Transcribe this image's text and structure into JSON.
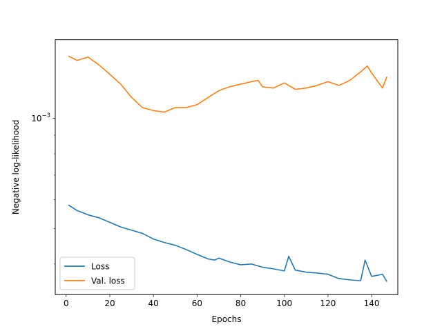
{
  "chart_data": {
    "type": "line",
    "xlabel": "Epochs",
    "ylabel": "Negative log-likelihood",
    "yscale": "log",
    "xlim": [
      -5,
      152
    ],
    "ylim": [
      0.00033,
      0.00164
    ],
    "xticks": [
      0,
      20,
      40,
      60,
      80,
      100,
      120,
      140
    ],
    "ytick_labels": [
      {
        "base": "10",
        "exp": "−3",
        "value": 0.001
      }
    ],
    "grid": false,
    "legend": "lower-left",
    "series": [
      {
        "name": "Loss",
        "color": "#1f77b4",
        "x": [
          1,
          5,
          10,
          15,
          20,
          25,
          30,
          35,
          40,
          45,
          50,
          55,
          60,
          65,
          68,
          70,
          75,
          80,
          85,
          90,
          95,
          100,
          102,
          105,
          110,
          115,
          120,
          125,
          130,
          135,
          137,
          140,
          145,
          147
        ],
        "y": [
          0.00058,
          0.00056,
          0.000545,
          0.000535,
          0.00052,
          0.000505,
          0.000495,
          0.000485,
          0.000468,
          0.000458,
          0.00045,
          0.000438,
          0.000425,
          0.000413,
          0.00041,
          0.000415,
          0.000405,
          0.000398,
          0.0004,
          0.000392,
          0.000388,
          0.000383,
          0.00042,
          0.000385,
          0.00038,
          0.000378,
          0.000375,
          0.000365,
          0.000362,
          0.00036,
          0.00041,
          0.00037,
          0.000375,
          0.000358
        ]
      },
      {
        "name": "Val. loss",
        "color": "#ff7f0e",
        "x": [
          1,
          5,
          10,
          15,
          20,
          25,
          30,
          35,
          40,
          45,
          50,
          55,
          60,
          65,
          68,
          70,
          75,
          80,
          85,
          88,
          90,
          95,
          100,
          105,
          110,
          115,
          120,
          125,
          130,
          135,
          138,
          140,
          145,
          147
        ],
        "y": [
          0.00148,
          0.00144,
          0.00147,
          0.0014,
          0.00132,
          0.00124,
          0.00114,
          0.00107,
          0.00105,
          0.00104,
          0.00107,
          0.00107,
          0.00109,
          0.00114,
          0.00117,
          0.00119,
          0.00122,
          0.00124,
          0.00126,
          0.00127,
          0.00122,
          0.00121,
          0.00125,
          0.0012,
          0.00121,
          0.00123,
          0.00126,
          0.00123,
          0.00127,
          0.00134,
          0.00139,
          0.00133,
          0.00121,
          0.0013
        ]
      }
    ]
  }
}
